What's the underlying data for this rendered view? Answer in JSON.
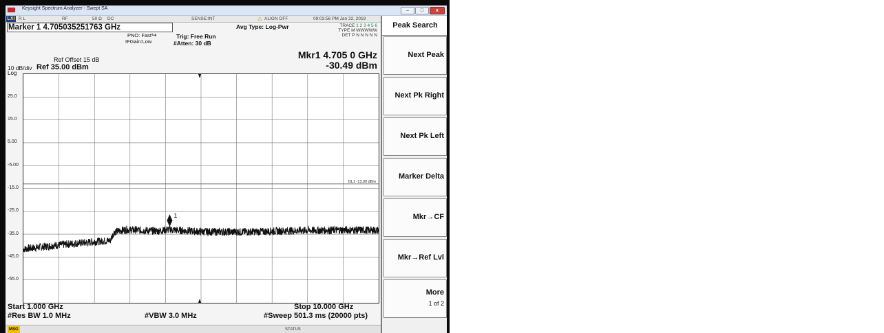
{
  "window": {
    "title": "Keysight Spectrum Analyzer - Swept SA",
    "minimize_glyph": "–",
    "maximize_glyph": "□",
    "close_glyph": "x"
  },
  "menu_row": {
    "lxi": "LXI",
    "rl": "R L",
    "rf": "RF",
    "impedance": "50 Ω",
    "coupling": "DC",
    "sense": "SENSE:INT",
    "align": "ALIGN OFF",
    "datetime": "09:03:56 PM Jan 22, 2018"
  },
  "header": {
    "marker_readout": "Marker 1 4.705035251763 GHz",
    "pno": "PNO: Fast",
    "ifgain": "IFGain:Low",
    "trig": "Trig: Free Run",
    "atten": "#Atten: 30 dB",
    "avg_type": "Avg Type: Log-Pwr",
    "trace_label": "TRACE",
    "trace_values": "1 2 3 4 5 6",
    "type_label": "TYPE",
    "type_values": "M WWWWW",
    "det_label": "DET",
    "det_values": "P N N N N N",
    "mkr_freq": "Mkr1 4.705 0 GHz",
    "mkr_amp": "-30.49 dBm",
    "ref_offset": "Ref Offset 15 dB",
    "scale": "10 dB/div",
    "ref_level": "Ref 35.00 dBm",
    "scale_type": "Log"
  },
  "plot": {
    "y_tick_labels": [
      "25.0",
      "15.0",
      "5.00",
      "-5.00",
      "-15.0",
      "-25.0",
      "-35.0",
      "-45.0",
      "-55.0"
    ],
    "display_line_label": "DL1 -13.00 dBm",
    "marker_label": "1",
    "trace_color": "#111111",
    "grid_color": "#777777"
  },
  "chart_data": {
    "type": "line",
    "x_unit": "GHz",
    "y_unit": "dBm",
    "xlim": [
      1.0,
      10.0
    ],
    "ylim": [
      -65.0,
      35.0
    ],
    "display_line": -13.0,
    "marker": {
      "x": 4.705,
      "y": -30.49
    },
    "trace_envelope": {
      "x": [
        1.0,
        1.5,
        2.0,
        2.5,
        3.0,
        3.2,
        3.3,
        3.6,
        4.0,
        4.4,
        4.7,
        5.0,
        5.5,
        6.0,
        6.5,
        7.0,
        7.5,
        8.0,
        8.5,
        9.0,
        9.5,
        10.0
      ],
      "y": [
        -41.5,
        -40.5,
        -39.5,
        -38.8,
        -38.0,
        -37.8,
        -34.0,
        -33.0,
        -33.3,
        -33.6,
        -33.0,
        -33.4,
        -33.9,
        -34.0,
        -34.0,
        -33.9,
        -33.6,
        -33.4,
        -33.3,
        -33.2,
        -33.2,
        -33.3
      ]
    }
  },
  "footer": {
    "start": "Start 1.000 GHz",
    "stop": "Stop 10.000 GHz",
    "res_bw": "#Res BW 1.0 MHz",
    "vbw": "#VBW 3.0 MHz",
    "sweep": "#Sweep  501.3 ms (20000 pts)"
  },
  "status_bar": {
    "msg": "MSG",
    "status": "STATUS"
  },
  "softkeys": {
    "title": "Peak Search",
    "items": [
      {
        "label": "Next Peak",
        "sub": ""
      },
      {
        "label": "Next Pk Right",
        "sub": ""
      },
      {
        "label": "Next Pk Left",
        "sub": ""
      },
      {
        "label": "Marker Delta",
        "sub": ""
      },
      {
        "label": "Mkr→CF",
        "sub": ""
      },
      {
        "label": "Mkr→Ref Lvl",
        "sub": ""
      },
      {
        "label": "More",
        "sub": "1 of 2"
      }
    ]
  }
}
